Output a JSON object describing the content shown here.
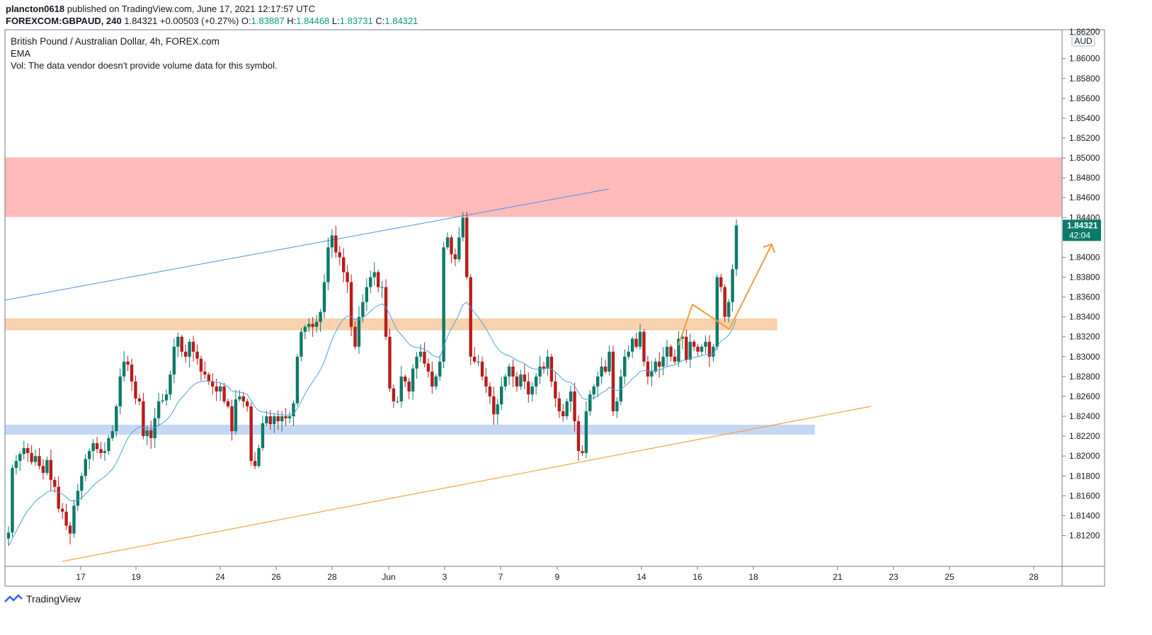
{
  "header": {
    "author": "plancton0618",
    "published": "published on TradingView.com, June 17, 2021 12:17:57 UTC",
    "symbol": "FOREXCOM:GBPAUD, 240",
    "price": "1.84321",
    "change": "+0.00503 (+0.27%)",
    "o_label": "O:",
    "o_val": "1.83887",
    "h_label": "H:",
    "h_val": "1.84468",
    "l_label": "L:",
    "l_val": "1.83731",
    "c_label": "C:",
    "c_val": "1.84321"
  },
  "legend": {
    "title": "British Pound / Australian Dollar, 4h, FOREX.com",
    "ema": "EMA",
    "vol": "Vol: The data vendor doesn't provide volume data for this symbol."
  },
  "price_axis": {
    "currency": "AUD",
    "top_partial": "1.86200",
    "last_price": "1.84321",
    "countdown": "42:04"
  },
  "footer": {
    "brand": "TradingView"
  },
  "colors": {
    "up": "#26a69a",
    "down": "#ef5350",
    "candle_up": "#0b7a6a",
    "candle_down": "#b71c1c",
    "ema": "#4aa3df",
    "resistance_zone": "#ffb3b3",
    "orange_zone": "#f7c79a",
    "blue_zone": "#b8cdf2",
    "trendline_blue": "#4a90e2",
    "trendline_orange": "#f7a23c",
    "projection": "#f39c3d",
    "badge": "#0a7a6a"
  },
  "chart_data": {
    "type": "candlestick",
    "x_ticks": [
      "17",
      "19",
      "24",
      "26",
      "28",
      "Jun",
      "3",
      "7",
      "9",
      "14",
      "16",
      "18",
      "21",
      "23",
      "25",
      "28"
    ],
    "y_ticks": [
      "1.86000",
      "1.85800",
      "1.85600",
      "1.85400",
      "1.85200",
      "1.85000",
      "1.84800",
      "1.84600",
      "1.84400",
      "1.84200",
      "1.84000",
      "1.83800",
      "1.83600",
      "1.83400",
      "1.83200",
      "1.83000",
      "1.82800",
      "1.82600",
      "1.82400",
      "1.82200",
      "1.82000",
      "1.81800",
      "1.81600",
      "1.81400",
      "1.81200"
    ],
    "ylim": [
      1.8089,
      1.8629
    ],
    "last_price": 1.84321,
    "zones": [
      {
        "name": "resistance",
        "y1": 1.8441,
        "y2": 1.85
      },
      {
        "name": "orange-support",
        "y1": 1.8327,
        "y2": 1.8338
      },
      {
        "name": "blue-support",
        "y1": 1.8222,
        "y2": 1.8231
      }
    ],
    "closes": [
      1.8123,
      1.8188,
      1.8195,
      1.8202,
      1.8208,
      1.8203,
      1.8194,
      1.82,
      1.819,
      1.8183,
      1.8196,
      1.8176,
      1.8169,
      1.8147,
      1.8144,
      1.813,
      1.8122,
      1.815,
      1.8165,
      1.818,
      1.8197,
      1.8205,
      1.8213,
      1.8207,
      1.8203,
      1.8205,
      1.8218,
      1.8225,
      1.825,
      1.828,
      1.8295,
      1.8292,
      1.8275,
      1.8258,
      1.8255,
      1.822,
      1.8226,
      1.8218,
      1.8238,
      1.8255,
      1.8256,
      1.8262,
      1.8282,
      1.831,
      1.832,
      1.8305,
      1.83,
      1.8315,
      1.8305,
      1.8298,
      1.8285,
      1.8282,
      1.8275,
      1.827,
      1.8265,
      1.827,
      1.8255,
      1.825,
      1.8225,
      1.8257,
      1.826,
      1.8255,
      1.825,
      1.8195,
      1.819,
      1.8208,
      1.8233,
      1.824,
      1.8232,
      1.824,
      1.8235,
      1.824,
      1.8238,
      1.824,
      1.8253,
      1.83,
      1.8325,
      1.833,
      1.8333,
      1.833,
      1.8335,
      1.8345,
      1.8375,
      1.841,
      1.8422,
      1.8405,
      1.84,
      1.8385,
      1.8375,
      1.833,
      1.831,
      1.834,
      1.8355,
      1.837,
      1.838,
      1.8385,
      1.837,
      1.837,
      1.832,
      1.8268,
      1.8255,
      1.8255,
      1.828,
      1.8275,
      1.8265,
      1.8288,
      1.83,
      1.8305,
      1.8293,
      1.8285,
      1.827,
      1.828,
      1.8295,
      1.841,
      1.842,
      1.8403,
      1.8398,
      1.842,
      1.844,
      1.838,
      1.83,
      1.8295,
      1.8295,
      1.828,
      1.827,
      1.826,
      1.8242,
      1.8252,
      1.827,
      1.828,
      1.829,
      1.828,
      1.827,
      1.8282,
      1.8275,
      1.8262,
      1.827,
      1.828,
      1.829,
      1.8288,
      1.83,
      1.8275,
      1.8258,
      1.8245,
      1.824,
      1.8255,
      1.8265,
      1.8235,
      1.8205,
      1.8203,
      1.8245,
      1.8262,
      1.827,
      1.828,
      1.829,
      1.8285,
      1.8305,
      1.8245,
      1.8255,
      1.828,
      1.83,
      1.8305,
      1.8318,
      1.831,
      1.8325,
      1.8295,
      1.828,
      1.8285,
      1.8295,
      1.829,
      1.83,
      1.831,
      1.83,
      1.8295,
      1.8318,
      1.832,
      1.8297,
      1.8315,
      1.831,
      1.8305,
      1.831,
      1.8315,
      1.83,
      1.831,
      1.838,
      1.837,
      1.834,
      1.8355,
      1.8388,
      1.8432
    ]
  }
}
